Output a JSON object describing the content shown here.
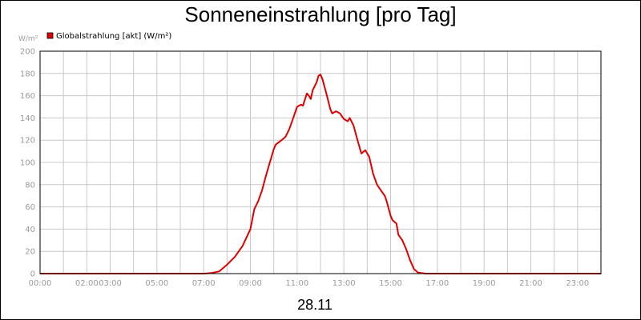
{
  "chart_data": {
    "type": "line",
    "title": "Sonneneinstrahlung [pro Tag]",
    "ylabel": "W/m²",
    "xlabel": "28.11",
    "ylim": [
      0,
      200
    ],
    "xlim": [
      "00:00",
      "24:00"
    ],
    "y_ticks": [
      0,
      20,
      40,
      60,
      80,
      100,
      120,
      140,
      160,
      180,
      200
    ],
    "x_tick_labels": [
      {
        "label": "00:00",
        "hour": 0
      },
      {
        "label": "02:00",
        "hour": 2
      },
      {
        "label": "03:00",
        "hour": 3
      },
      {
        "label": "05:00",
        "hour": 5
      },
      {
        "label": "07:00",
        "hour": 7
      },
      {
        "label": "09:00",
        "hour": 9
      },
      {
        "label": "11:00",
        "hour": 11
      },
      {
        "label": "13:00",
        "hour": 13
      },
      {
        "label": "15:00",
        "hour": 15
      },
      {
        "label": "17:00",
        "hour": 17
      },
      {
        "label": "19:00",
        "hour": 19
      },
      {
        "label": "21:00",
        "hour": 21
      },
      {
        "label": "23:00",
        "hour": 23
      }
    ],
    "grid": true,
    "legend": {
      "placement": "top-left"
    },
    "series": [
      {
        "name": "Globalstrahlung [akt] (W/m²)",
        "color": "#e00000",
        "points": [
          [
            "00:00",
            0
          ],
          [
            "07:00",
            0
          ],
          [
            "07:20",
            0.5
          ],
          [
            "07:40",
            2
          ],
          [
            "08:00",
            8
          ],
          [
            "08:20",
            15
          ],
          [
            "08:40",
            25
          ],
          [
            "09:00",
            40
          ],
          [
            "09:10",
            58
          ],
          [
            "09:20",
            65
          ],
          [
            "09:30",
            75
          ],
          [
            "09:40",
            88
          ],
          [
            "09:50",
            100
          ],
          [
            "10:00",
            112
          ],
          [
            "10:05",
            116
          ],
          [
            "10:20",
            120
          ],
          [
            "10:30",
            123
          ],
          [
            "10:40",
            130
          ],
          [
            "10:50",
            140
          ],
          [
            "11:00",
            150
          ],
          [
            "11:10",
            152
          ],
          [
            "11:15",
            151
          ],
          [
            "11:25",
            162
          ],
          [
            "11:30",
            160
          ],
          [
            "11:35",
            157
          ],
          [
            "11:40",
            165
          ],
          [
            "11:50",
            172
          ],
          [
            "11:55",
            178
          ],
          [
            "12:00",
            179
          ],
          [
            "12:05",
            175
          ],
          [
            "12:15",
            162
          ],
          [
            "12:25",
            148
          ],
          [
            "12:30",
            144
          ],
          [
            "12:40",
            146
          ],
          [
            "12:50",
            144
          ],
          [
            "13:00",
            139
          ],
          [
            "13:10",
            137
          ],
          [
            "13:15",
            140
          ],
          [
            "13:25",
            133
          ],
          [
            "13:35",
            120
          ],
          [
            "13:45",
            108
          ],
          [
            "13:55",
            111
          ],
          [
            "14:05",
            105
          ],
          [
            "14:15",
            90
          ],
          [
            "14:25",
            80
          ],
          [
            "14:35",
            75
          ],
          [
            "14:45",
            70
          ],
          [
            "14:50",
            65
          ],
          [
            "15:00",
            52
          ],
          [
            "15:05",
            48
          ],
          [
            "15:15",
            45
          ],
          [
            "15:20",
            35
          ],
          [
            "15:30",
            30
          ],
          [
            "15:40",
            22
          ],
          [
            "15:50",
            12
          ],
          [
            "16:00",
            4
          ],
          [
            "16:10",
            1
          ],
          [
            "16:30",
            0
          ],
          [
            "24:00",
            0
          ]
        ]
      }
    ]
  }
}
